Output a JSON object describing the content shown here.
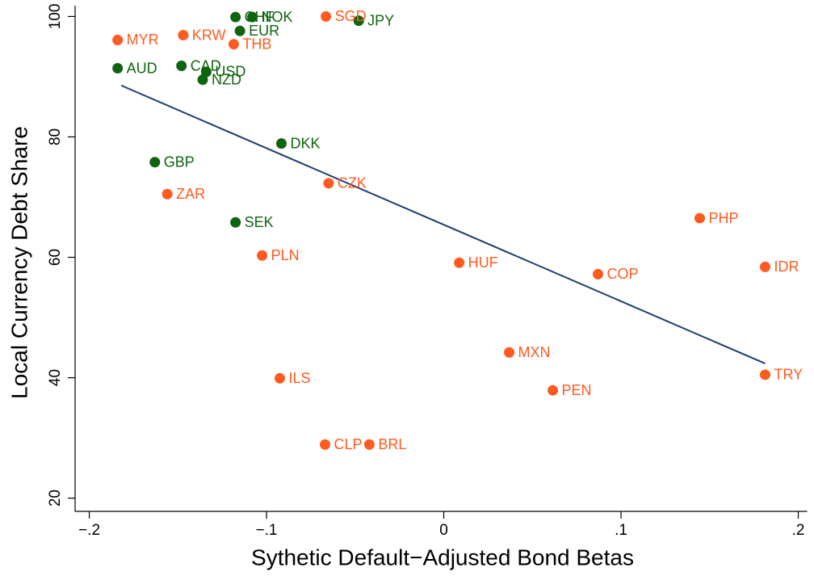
{
  "chart_data": {
    "type": "scatter",
    "x_label": "Sythetic Default−Adjusted Bond Betas",
    "y_label": "Local Currency Debt Share",
    "xlim": [
      -0.208,
      0.205
    ],
    "ylim": [
      17.8,
      101.8
    ],
    "xticks": [
      {
        "value": -0.2,
        "label": "−.2"
      },
      {
        "value": -0.1,
        "label": "−.1"
      },
      0,
      {
        "value": 0.1,
        "label": ".1"
      },
      {
        "value": 0.2,
        "label": ".2"
      }
    ],
    "yticks": [
      20,
      40,
      60,
      80,
      100
    ],
    "series": [
      {
        "color": "#0f640f",
        "labels": [
          "CHF",
          "NOK",
          "EUR",
          "JPY",
          "AUD",
          "CAD",
          "USD",
          "NZD",
          "DKK",
          "GBP",
          "SEK"
        ],
        "x": [
          -0.1175,
          -0.108,
          -0.115,
          -0.048,
          -0.184,
          -0.148,
          -0.134,
          -0.136,
          -0.0916,
          -0.163,
          -0.1175
        ],
        "values": [
          99.9,
          99.9,
          97.6,
          99.3,
          91.4,
          91.8,
          90.8,
          89.5,
          78.9,
          75.8,
          65.8
        ]
      },
      {
        "color": "#ff5a1f",
        "labels": [
          "MYR",
          "KRW",
          "THB",
          "SGD",
          "CZK",
          "ZAR",
          "PLN",
          "HUF",
          "COP",
          "PHP",
          "IDR",
          "MXN",
          "PEN",
          "TRY",
          "ILS",
          "CLP",
          "BRL"
        ],
        "x": [
          -0.184,
          -0.147,
          -0.1185,
          -0.0665,
          -0.065,
          -0.156,
          -0.1025,
          0.0087,
          0.087,
          0.1444,
          0.1813,
          0.0369,
          0.0615,
          0.1813,
          -0.0925,
          -0.067,
          -0.042
        ],
        "values": [
          96.1,
          96.9,
          95.4,
          100.0,
          72.3,
          70.5,
          60.3,
          59.1,
          57.2,
          66.5,
          58.4,
          44.2,
          37.9,
          40.5,
          39.9,
          28.9,
          28.9
        ]
      }
    ],
    "fit": {
      "color": "#1f3f6e",
      "x": [
        -0.182,
        0.1813
      ],
      "values": [
        88.55,
        42.36
      ]
    }
  }
}
